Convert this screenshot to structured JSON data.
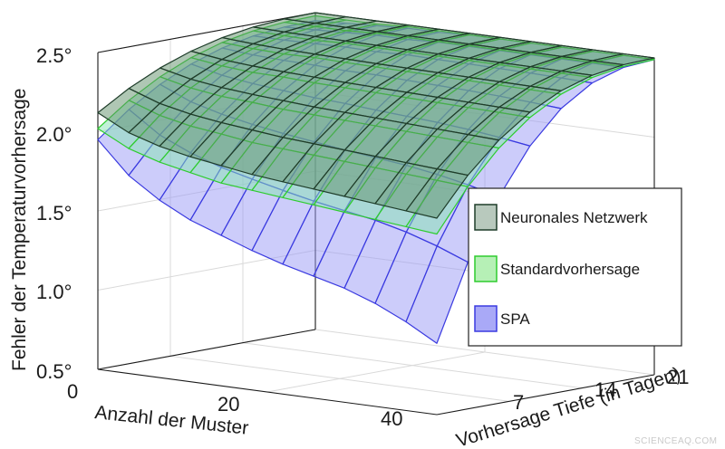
{
  "chart_data": {
    "type": "surface3d",
    "title": "",
    "xlabel": "Anzahl der Muster",
    "ylabel": "Vorhersage Tiefe (in Tagen)",
    "zlabel": "Fehler der Temperaturvorhersage",
    "xlim": [
      0,
      40
    ],
    "ylim": [
      0,
      21
    ],
    "zlim": [
      0.5,
      2.5
    ],
    "x_ticks": [
      "0",
      "20",
      "40"
    ],
    "y_ticks": [
      "7",
      "14",
      "21"
    ],
    "z_ticks": [
      "0.5°",
      "1.0°",
      "1.5°",
      "2.0°",
      "2.5°"
    ],
    "grid": true,
    "legend_position": "right",
    "series": [
      {
        "name": "SPA",
        "color": "#3a3ae0",
        "fill": "#9a9af5",
        "edge_near_depth": [
          1.95,
          1.75,
          1.62,
          1.52,
          1.45,
          1.38,
          1.32,
          1.27,
          1.22,
          1.15,
          1.06,
          0.95
        ],
        "edge_far_x": [
          2.45,
          2.46,
          2.47,
          2.48,
          2.48,
          2.49,
          2.49,
          2.49,
          2.49,
          2.49,
          2.49,
          2.49
        ]
      },
      {
        "name": "Standardvorhersage",
        "color": "#2ecc2e",
        "fill": "#86e3b2",
        "edge_near_depth": [
          2.02,
          1.92,
          1.86,
          1.82,
          1.78,
          1.76,
          1.74,
          1.72,
          1.7,
          1.68,
          1.66,
          1.64
        ],
        "edge_far_x": [
          2.48,
          2.48,
          2.48,
          2.49,
          2.49,
          2.49,
          2.49,
          2.49,
          2.49,
          2.49,
          2.49,
          2.49
        ]
      },
      {
        "name": "Neuronales Netzwerk",
        "color": "#1f3d2a",
        "fill": "#5f8f6a",
        "edge_near_depth": [
          2.12,
          2.02,
          1.96,
          1.92,
          1.89,
          1.86,
          1.84,
          1.82,
          1.8,
          1.78,
          1.76,
          1.74
        ],
        "edge_far_x": [
          2.5,
          2.5,
          2.5,
          2.5,
          2.5,
          2.5,
          2.5,
          2.5,
          2.5,
          2.5,
          2.5,
          2.5
        ]
      }
    ],
    "legend": {
      "entries": [
        "Neuronales Netzwerk",
        "Standardvorhersage",
        "SPA"
      ]
    }
  },
  "watermark": "SCIENCEAQ.COM"
}
